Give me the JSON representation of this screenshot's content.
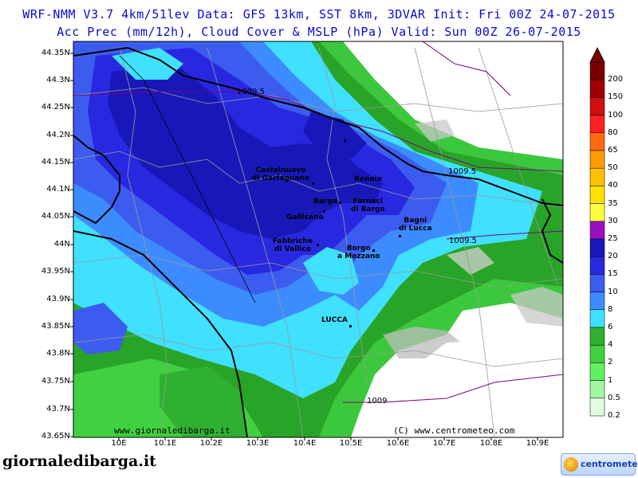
{
  "header": {
    "line1": "WRF-NMM V3.7 4km/51lev  Data: GFS 13km, SST 8km, 3DVAR  Init: Fri 00Z 24-07-2015",
    "line2": "Acc Prec (mm/12h), Cloud Cover & MSLP (hPa)  Valid: Sun 00Z 26-07-2015"
  },
  "axes": {
    "lat_labels": [
      "44.35N",
      "44.3N",
      "44.25N",
      "44.2N",
      "44.15N",
      "44.1N",
      "44.05N",
      "44N",
      "43.95N",
      "43.9N",
      "43.85N",
      "43.8N",
      "43.75N",
      "43.7N",
      "43.65N"
    ],
    "lon_labels": [
      "10E",
      "10.1E",
      "10.2E",
      "10.3E",
      "10.4E",
      "10.5E",
      "10.6E",
      "10.7E",
      "10.8E",
      "10.9E"
    ]
  },
  "towns": [
    {
      "label": "Castelnuovo\ndi Garfagnana"
    },
    {
      "label": "Renaio"
    },
    {
      "label": "Barga"
    },
    {
      "label": "Fornaci\ndi Barga"
    },
    {
      "label": "Gallicano"
    },
    {
      "label": "Bagni\ndi Lucca"
    },
    {
      "label": "Fabbriche\ndi Vallico"
    },
    {
      "label": "Borgo\na Mozzano"
    },
    {
      "label": "LUCCA"
    }
  ],
  "isobar_labels": [
    "1009.5",
    "1009.5",
    "1009.5",
    "1009"
  ],
  "watermarks": {
    "left": "www.giornaledibarga.it",
    "right": "(C) www.centrometeo.com"
  },
  "legend": {
    "labels": [
      "200",
      "150",
      "100",
      "80",
      "65",
      "50",
      "40",
      "35",
      "30",
      "25",
      "20",
      "15",
      "10",
      "8",
      "6",
      "4",
      "2",
      "1",
      "0.5",
      "0.2"
    ],
    "colors": [
      "#7a0000",
      "#a00000",
      "#d01010",
      "#ff2020",
      "#ff6a10",
      "#ff9a00",
      "#ffc000",
      "#ffe000",
      "#ffff40",
      "#9a10c0",
      "#1818b8",
      "#2828e0",
      "#3c5cf0",
      "#3c8cff",
      "#40e0ff",
      "#30b030",
      "#40d040",
      "#60f060",
      "#a0f8a0",
      "#e0ffe0"
    ]
  },
  "footer": {
    "site": "giornaledibarga.it",
    "logo": "centrometeo"
  },
  "colors": {
    "title": "#0a0ad0",
    "background": "#ffffff"
  }
}
